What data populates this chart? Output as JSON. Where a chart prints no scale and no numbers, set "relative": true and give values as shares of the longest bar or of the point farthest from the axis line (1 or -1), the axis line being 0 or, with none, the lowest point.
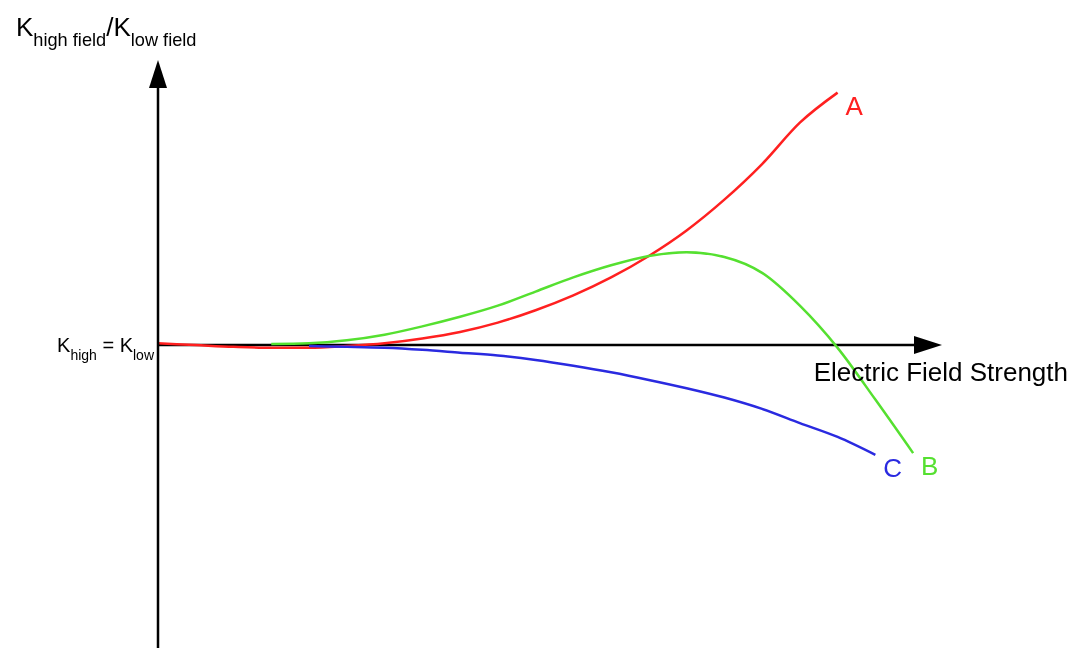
{
  "chart_data": {
    "type": "line",
    "relative": true,
    "ylabel": "K$_{high field}$/K$_{low field}$",
    "xlabel": "Electric Field Strength",
    "categories": [
      null,
      null,
      null,
      null,
      null,
      null,
      null,
      null,
      null,
      null,
      null,
      null,
      null,
      null,
      null,
      null,
      null,
      null,
      null,
      null,
      null
    ],
    "ref_lines": [
      {
        "axis": "y",
        "value": 0,
        "label": "K$_{high}$ = K$_{low}$",
        "color": "#000000"
      }
    ],
    "series": [
      {
        "name": "A",
        "color": "#ff2020",
        "values": [
          0.007,
          0,
          -0.007,
          -0.011,
          -0.011,
          -0.004,
          0.007,
          0.026,
          0.052,
          0.089,
          0.138,
          0.197,
          0.268,
          0.353,
          0.454,
          0.576,
          0.717,
          0.881,
          1,
          null,
          null
        ]
      },
      {
        "name": "B",
        "color": "#55e030",
        "values": [
          null,
          null,
          null,
          0.004,
          0.007,
          0.019,
          0.041,
          0.074,
          0.112,
          0.156,
          0.212,
          0.268,
          0.316,
          0.353,
          0.368,
          0.349,
          0.286,
          0.156,
          -0.011,
          -0.216,
          -0.428
        ]
      },
      {
        "name": "C",
        "color": "#2a2ae0",
        "values": [
          null,
          null,
          null,
          null,
          -0.004,
          -0.007,
          -0.011,
          -0.019,
          -0.03,
          -0.041,
          -0.059,
          -0.082,
          -0.108,
          -0.138,
          -0.171,
          -0.208,
          -0.253,
          -0.309,
          -0.364,
          -0.435,
          null
        ]
      }
    ],
    "grid": false,
    "legend": false,
    "marker": "none",
    "line_style": "solid"
  }
}
